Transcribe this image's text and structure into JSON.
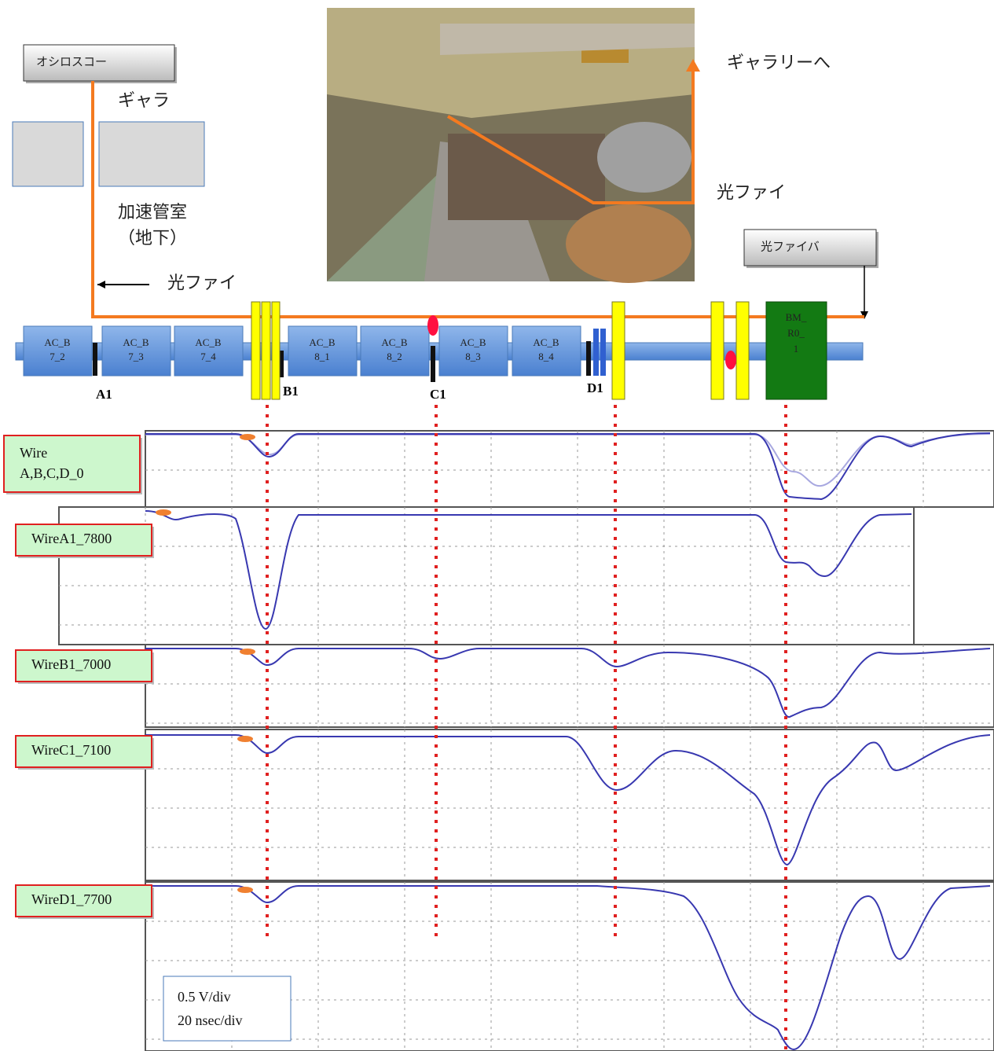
{
  "oscilloscope_box": "オシロスコー",
  "gallery_short": "ギャラ",
  "room": "加速管室",
  "room_note": "（地下）",
  "fiber_left": "光ファイ",
  "gallery_arrow": "ギャラリーへ",
  "fiber_photo": "光ファイ",
  "fiber_box": "光ファイバ",
  "tubes": [
    [
      "AC_B",
      "7_2"
    ],
    [
      "AC_B",
      "7_3"
    ],
    [
      "AC_B",
      "7_4"
    ],
    [
      "AC_B",
      "8_1"
    ],
    [
      "AC_B",
      "8_2"
    ],
    [
      "AC_B",
      "8_3"
    ],
    [
      "AC_B",
      "8_4"
    ]
  ],
  "monitors": [
    "A1",
    "B1",
    "C1",
    "D1"
  ],
  "bm": [
    "BM_",
    "R0_",
    "1"
  ],
  "traces": [
    [
      "Wire",
      "A,B,C,D_0"
    ],
    [
      "WireA1_7800"
    ],
    [
      "WireB1_7000"
    ],
    [
      "WireC1_7100"
    ],
    [
      "WireD1_7700"
    ]
  ],
  "scale": [
    "0.5 V/div",
    "20 nsec/div"
  ]
}
